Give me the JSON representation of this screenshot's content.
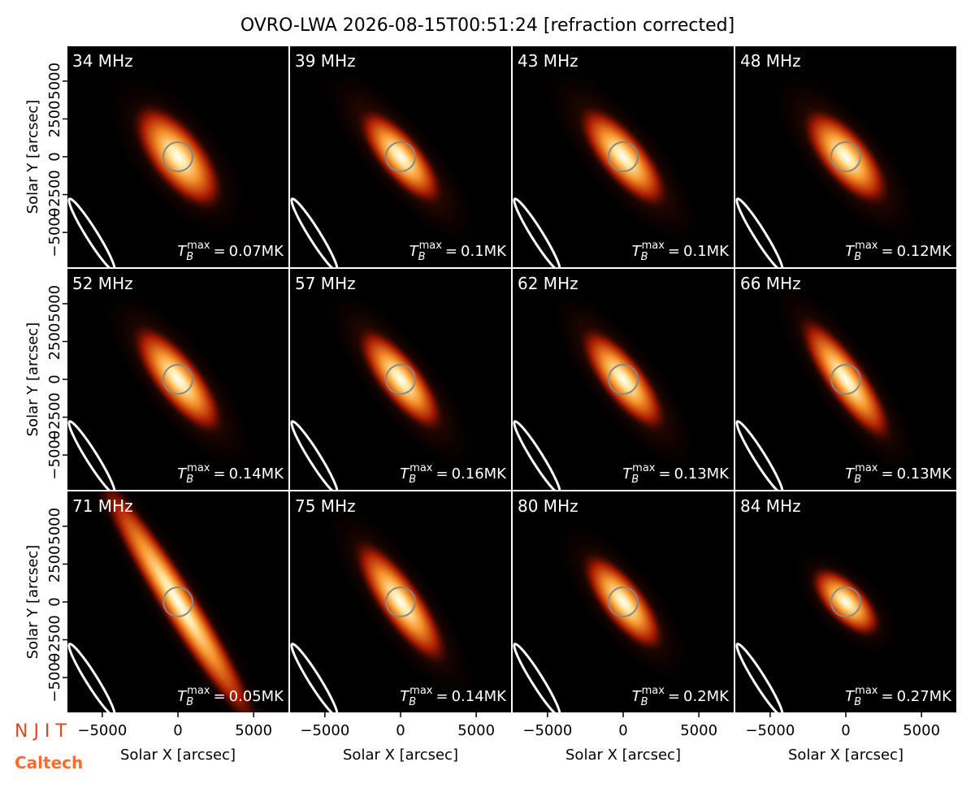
{
  "chart_data": {
    "type": "image-grid",
    "title": "OVRO-LWA 2026-08-15T00:51:24 [refraction corrected]",
    "xlabel": "Solar X [arcsec]",
    "ylabel": "Solar Y [arcsec]",
    "xlim": [
      -7300,
      7300
    ],
    "ylim": [
      -7300,
      7300
    ],
    "xticks": [
      {
        "value": -5000,
        "label": "−5000"
      },
      0,
      5000
    ],
    "yticks": [
      {
        "value": -5000,
        "label": "−5000"
      },
      {
        "value": -2500,
        "label": "−2500"
      },
      0,
      2500,
      5000
    ],
    "tb_symbol": "T",
    "tb_sub": "B",
    "tb_sup": "max",
    "tb_eq": "=",
    "tb_unit": "MK",
    "panels": [
      {
        "label": "34 MHz",
        "tb_max": 0.07
      },
      {
        "label": "39 MHz",
        "tb_max": 0.1
      },
      {
        "label": "43 MHz",
        "tb_max": 0.1
      },
      {
        "label": "48 MHz",
        "tb_max": 0.12
      },
      {
        "label": "52 MHz",
        "tb_max": 0.14
      },
      {
        "label": "57 MHz",
        "tb_max": 0.16
      },
      {
        "label": "62 MHz",
        "tb_max": 0.13
      },
      {
        "label": "66 MHz",
        "tb_max": 0.13
      },
      {
        "label": "71 MHz",
        "tb_max": 0.05
      },
      {
        "label": "75 MHz",
        "tb_max": 0.14
      },
      {
        "label": "80 MHz",
        "tb_max": 0.2
      },
      {
        "label": "84 MHz",
        "tb_max": 0.27
      }
    ]
  },
  "logos": {
    "njit": "N J I T",
    "caltech": "Caltech"
  }
}
